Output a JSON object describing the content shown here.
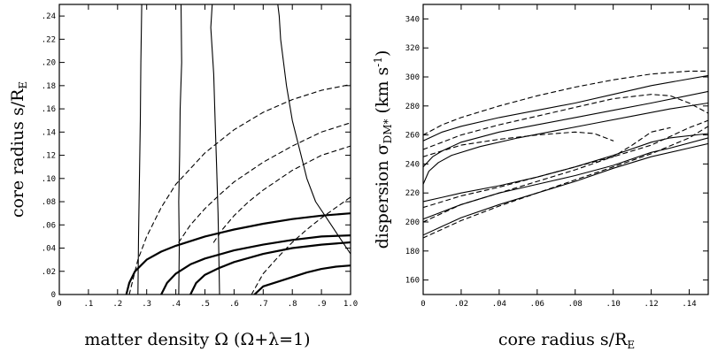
{
  "chart_data": [
    {
      "type": "line",
      "xlabel_text": "matter density Ω (Ω+λ=1)",
      "ylabel_main": "core radius s/R",
      "ylabel_sub": "E",
      "xlim": [
        0,
        1.0
      ],
      "ylim": [
        0,
        0.25
      ],
      "xticks": [
        {
          "v": 0,
          "t": "0"
        },
        {
          "v": 0.1,
          "t": ".1"
        },
        {
          "v": 0.2,
          "t": ".2"
        },
        {
          "v": 0.3,
          "t": ".3"
        },
        {
          "v": 0.4,
          "t": ".4"
        },
        {
          "v": 0.5,
          "t": ".5"
        },
        {
          "v": 0.6,
          "t": ".6"
        },
        {
          "v": 0.7,
          "t": ".7"
        },
        {
          "v": 0.8,
          "t": ".8"
        },
        {
          "v": 0.9,
          "t": ".9"
        },
        {
          "v": 1.0,
          "t": "1.0"
        }
      ],
      "yticks": [
        {
          "v": 0,
          "t": "0"
        },
        {
          "v": 0.02,
          "t": ".02"
        },
        {
          "v": 0.04,
          "t": ".04"
        },
        {
          "v": 0.06,
          "t": ".06"
        },
        {
          "v": 0.08,
          "t": ".08"
        },
        {
          "v": 0.1,
          "t": ".10"
        },
        {
          "v": 0.12,
          "t": ".12"
        },
        {
          "v": 0.14,
          "t": ".14"
        },
        {
          "v": 0.16,
          "t": ".16"
        },
        {
          "v": 0.18,
          "t": ".18"
        },
        {
          "v": 0.2,
          "t": ".20"
        },
        {
          "v": 0.22,
          "t": ".22"
        },
        {
          "v": 0.24,
          "t": ".24"
        }
      ],
      "series": [
        {
          "style": "thin",
          "x": [
            0.27,
            0.272,
            0.275,
            0.278,
            0.28,
            0.283
          ],
          "y": [
            0,
            0.05,
            0.1,
            0.15,
            0.2,
            0.25
          ]
        },
        {
          "style": "thin",
          "x": [
            0.41,
            0.412,
            0.41,
            0.413,
            0.415,
            0.42,
            0.418
          ],
          "y": [
            0,
            0.04,
            0.08,
            0.12,
            0.16,
            0.2,
            0.25
          ]
        },
        {
          "style": "thin",
          "x": [
            0.55,
            0.548,
            0.545,
            0.54,
            0.535,
            0.53,
            0.52,
            0.525
          ],
          "y": [
            0,
            0.03,
            0.07,
            0.11,
            0.15,
            0.19,
            0.23,
            0.25
          ]
        },
        {
          "style": "thin",
          "x": [
            1.0,
            0.96,
            0.92,
            0.88,
            0.85,
            0.83,
            0.8,
            0.78,
            0.77,
            0.76,
            0.755,
            0.75
          ],
          "y": [
            0.035,
            0.05,
            0.065,
            0.08,
            0.1,
            0.12,
            0.15,
            0.18,
            0.2,
            0.22,
            0.24,
            0.25
          ]
        },
        {
          "style": "thick",
          "x": [
            0.23,
            0.24,
            0.26,
            0.3,
            0.35,
            0.4,
            0.5,
            0.6,
            0.7,
            0.8,
            0.9,
            1.0
          ],
          "y": [
            0,
            0.01,
            0.02,
            0.03,
            0.037,
            0.042,
            0.05,
            0.056,
            0.061,
            0.065,
            0.068,
            0.07
          ]
        },
        {
          "style": "thick",
          "x": [
            0.35,
            0.37,
            0.4,
            0.45,
            0.5,
            0.6,
            0.7,
            0.8,
            0.9,
            1.0
          ],
          "y": [
            0,
            0.01,
            0.018,
            0.026,
            0.031,
            0.038,
            0.043,
            0.047,
            0.05,
            0.051
          ]
        },
        {
          "style": "thick",
          "x": [
            0.45,
            0.47,
            0.5,
            0.55,
            0.6,
            0.7,
            0.8,
            0.9,
            1.0
          ],
          "y": [
            0,
            0.01,
            0.017,
            0.023,
            0.028,
            0.035,
            0.04,
            0.043,
            0.045
          ]
        },
        {
          "style": "thick",
          "x": [
            0.67,
            0.7,
            0.75,
            0.8,
            0.85,
            0.9,
            0.95,
            1.0
          ],
          "y": [
            0,
            0.007,
            0.011,
            0.015,
            0.019,
            0.022,
            0.024,
            0.025
          ]
        },
        {
          "style": "dashed",
          "x": [
            0.24,
            0.27,
            0.3,
            0.35,
            0.4,
            0.5,
            0.6,
            0.7,
            0.8,
            0.9,
            1.0
          ],
          "y": [
            0,
            0.03,
            0.05,
            0.075,
            0.095,
            0.122,
            0.142,
            0.157,
            0.168,
            0.176,
            0.181
          ]
        },
        {
          "style": "dashed",
          "x": [
            0.41,
            0.45,
            0.5,
            0.55,
            0.6,
            0.7,
            0.8,
            0.9,
            1.0
          ],
          "y": [
            0.045,
            0.06,
            0.074,
            0.086,
            0.097,
            0.114,
            0.128,
            0.14,
            0.148
          ]
        },
        {
          "style": "dashed",
          "x": [
            0.53,
            0.56,
            0.6,
            0.65,
            0.7,
            0.8,
            0.9,
            1.0
          ],
          "y": [
            0.045,
            0.056,
            0.068,
            0.08,
            0.09,
            0.107,
            0.12,
            0.128
          ]
        },
        {
          "style": "dashed",
          "x": [
            0.66,
            0.7,
            0.75,
            0.8,
            0.85,
            0.9,
            0.95,
            1.0
          ],
          "y": [
            0,
            0.018,
            0.032,
            0.045,
            0.056,
            0.066,
            0.075,
            0.084
          ]
        }
      ]
    },
    {
      "type": "line",
      "xlabel_main": "core radius s/R",
      "xlabel_sub": "E",
      "ylabel_pre": "dispersion σ",
      "ylabel_sub": "DM*",
      "ylabel_post": " (km s",
      "ylabel_sup": "-1",
      "ylabel_end": ")",
      "xlim": [
        0,
        0.15
      ],
      "ylim": [
        150,
        350
      ],
      "xticks": [
        {
          "v": 0,
          "t": "0"
        },
        {
          "v": 0.02,
          "t": ".02"
        },
        {
          "v": 0.04,
          "t": ".04"
        },
        {
          "v": 0.06,
          "t": ".06"
        },
        {
          "v": 0.08,
          "t": ".08"
        },
        {
          "v": 0.1,
          "t": ".10"
        },
        {
          "v": 0.12,
          "t": ".12"
        },
        {
          "v": 0.14,
          "t": ".14"
        }
      ],
      "yticks": [
        {
          "v": 160,
          "t": "160"
        },
        {
          "v": 180,
          "t": "180"
        },
        {
          "v": 200,
          "t": "200"
        },
        {
          "v": 220,
          "t": "220"
        },
        {
          "v": 240,
          "t": "240"
        },
        {
          "v": 260,
          "t": "260"
        },
        {
          "v": 280,
          "t": "280"
        },
        {
          "v": 300,
          "t": "300"
        },
        {
          "v": 320,
          "t": "320"
        },
        {
          "v": 340,
          "t": "340"
        }
      ],
      "series": [
        {
          "style": "solid",
          "x": [
            0,
            0.01,
            0.02,
            0.04,
            0.06,
            0.08,
            0.1,
            0.12,
            0.15
          ],
          "y": [
            256,
            262,
            266,
            272,
            277,
            282,
            288,
            294,
            301
          ]
        },
        {
          "style": "solid",
          "x": [
            0,
            0.005,
            0.01,
            0.02,
            0.04,
            0.06,
            0.08,
            0.1,
            0.12,
            0.15
          ],
          "y": [
            238,
            245,
            249,
            255,
            262,
            267,
            272,
            277,
            282,
            290
          ]
        },
        {
          "style": "solid",
          "x": [
            0,
            0.003,
            0.008,
            0.015,
            0.03,
            0.05,
            0.07,
            0.09,
            0.11,
            0.13,
            0.15
          ],
          "y": [
            226,
            235,
            241,
            246,
            252,
            258,
            263,
            268,
            273,
            278,
            282
          ]
        },
        {
          "style": "solid",
          "x": [
            0,
            0.01,
            0.02,
            0.04,
            0.06,
            0.08,
            0.1,
            0.12,
            0.13,
            0.15
          ],
          "y": [
            214,
            217,
            220,
            225,
            231,
            238,
            246,
            255,
            258,
            261
          ]
        },
        {
          "style": "solid",
          "x": [
            0,
            0.01,
            0.02,
            0.04,
            0.06,
            0.08,
            0.1,
            0.12,
            0.13,
            0.15
          ],
          "y": [
            202,
            207,
            212,
            220,
            226,
            232,
            239,
            248,
            251,
            258
          ]
        },
        {
          "style": "solid",
          "x": [
            0,
            0.01,
            0.02,
            0.04,
            0.06,
            0.08,
            0.1,
            0.12,
            0.14,
            0.15
          ],
          "y": [
            191,
            197,
            203,
            212,
            220,
            228,
            237,
            245,
            251,
            254
          ]
        },
        {
          "style": "dashed",
          "x": [
            0,
            0.01,
            0.02,
            0.04,
            0.06,
            0.08,
            0.1,
            0.12,
            0.14,
            0.15
          ],
          "y": [
            260,
            267,
            272,
            280,
            287,
            293,
            298,
            302,
            304,
            304
          ]
        },
        {
          "style": "dashed",
          "x": [
            0,
            0.01,
            0.02,
            0.04,
            0.06,
            0.08,
            0.1,
            0.12,
            0.13,
            0.14,
            0.15
          ],
          "y": [
            250,
            255,
            260,
            267,
            273,
            279,
            285,
            288,
            287,
            282,
            275
          ]
        },
        {
          "style": "dashed",
          "x": [
            0,
            0.01,
            0.02,
            0.04,
            0.06,
            0.08,
            0.09,
            0.1
          ],
          "y": [
            245,
            249,
            253,
            257,
            260,
            262,
            261,
            256
          ]
        },
        {
          "style": "dashed",
          "x": [
            0,
            0.02,
            0.04,
            0.06,
            0.08,
            0.1,
            0.12,
            0.14,
            0.15
          ],
          "y": [
            210,
            218,
            224,
            231,
            238,
            245,
            253,
            265,
            270
          ]
        },
        {
          "style": "dashed",
          "x": [
            0,
            0.02,
            0.04,
            0.06,
            0.08,
            0.1,
            0.11,
            0.12,
            0.13
          ],
          "y": [
            200,
            212,
            220,
            228,
            236,
            245,
            253,
            262,
            265
          ]
        },
        {
          "style": "dashed",
          "x": [
            0,
            0.02,
            0.04,
            0.06,
            0.08,
            0.1,
            0.12,
            0.14,
            0.15
          ],
          "y": [
            189,
            201,
            211,
            220,
            229,
            238,
            247,
            258,
            266
          ]
        }
      ]
    }
  ]
}
